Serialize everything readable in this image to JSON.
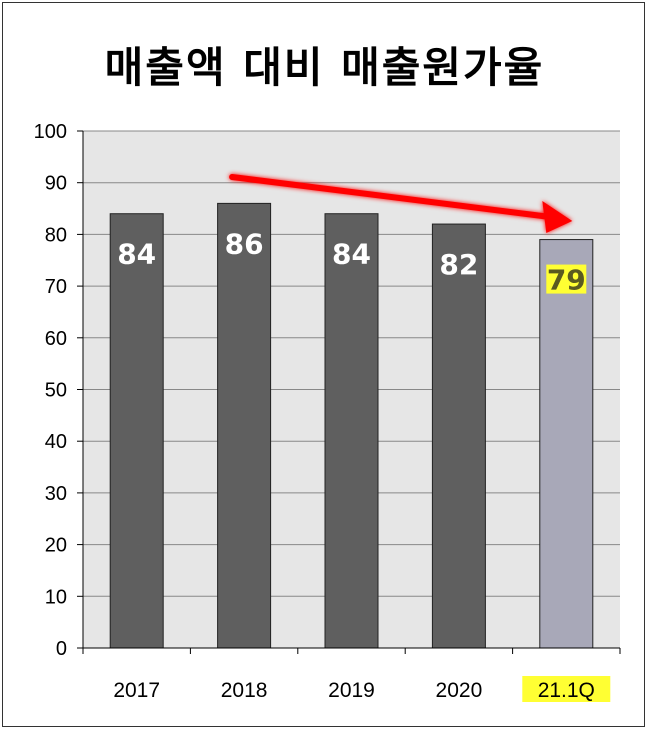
{
  "chart_data": {
    "type": "bar",
    "title": "매출액 대비 매출원가율",
    "categories": [
      "2017",
      "2018",
      "2019",
      "2020",
      "21.1Q"
    ],
    "values": [
      84,
      86,
      84,
      82,
      79
    ],
    "data_labels": [
      "84",
      "86",
      "84",
      "82",
      "79"
    ],
    "ylim": [
      0,
      100
    ],
    "yticks": [
      0,
      10,
      20,
      30,
      40,
      50,
      60,
      70,
      80,
      90,
      100
    ],
    "grid": true,
    "legend": "none",
    "annotations": {
      "trend_arrow": {
        "from_category": "2018",
        "to_category": "21.1Q",
        "color": "#ff0000"
      },
      "highlighted_category": "21.1Q",
      "highlight_color": "#ffff33"
    },
    "colors": {
      "bar": "#5f5f5f",
      "highlight_bar": "#a8a8b8",
      "plot_bg": "#e6e6e6",
      "grid": "#888888"
    }
  }
}
